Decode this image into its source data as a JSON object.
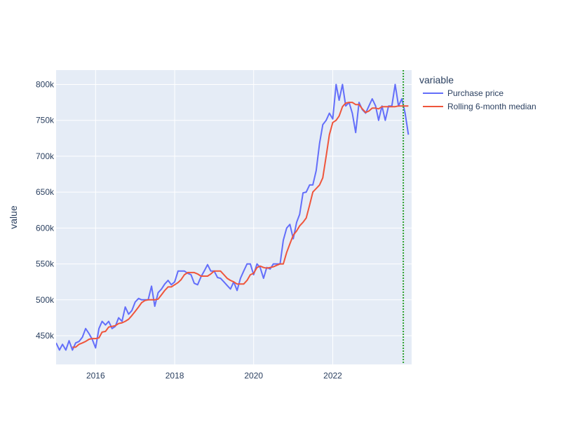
{
  "chart_data": {
    "type": "line",
    "title": "",
    "xlabel": "",
    "ylabel": "value",
    "xlim": [
      "2015-01-01",
      "2023-12-31"
    ],
    "ylim": [
      410000,
      820000
    ],
    "x_ticks": [
      {
        "value": "2016-01-01",
        "label": "2016"
      },
      {
        "value": "2018-01-01",
        "label": "2018"
      },
      {
        "value": "2020-01-01",
        "label": "2020"
      },
      {
        "value": "2022-01-01",
        "label": "2022"
      }
    ],
    "y_ticks": [
      {
        "value": 450000,
        "label": "450k"
      },
      {
        "value": 500000,
        "label": "500k"
      },
      {
        "value": 550000,
        "label": "550k"
      },
      {
        "value": 600000,
        "label": "600k"
      },
      {
        "value": 650000,
        "label": "650k"
      },
      {
        "value": 700000,
        "label": "700k"
      },
      {
        "value": 750000,
        "label": "750k"
      },
      {
        "value": 800000,
        "label": "800k"
      }
    ],
    "grid": true,
    "legend": {
      "title": "variable",
      "position": "top-right, outside plot"
    },
    "vertical_line": {
      "x": "2023-10-15",
      "color": "#2ca02c",
      "style": "dotted"
    },
    "series": [
      {
        "name": "Purchase price",
        "color": "#636efa",
        "points": [
          [
            "2015-01-01",
            440000
          ],
          [
            "2015-02-01",
            430000
          ],
          [
            "2015-03-01",
            438000
          ],
          [
            "2015-04-01",
            430000
          ],
          [
            "2015-05-01",
            443000
          ],
          [
            "2015-06-01",
            430000
          ],
          [
            "2015-07-01",
            440000
          ],
          [
            "2015-08-01",
            442000
          ],
          [
            "2015-09-01",
            448000
          ],
          [
            "2015-10-01",
            460000
          ],
          [
            "2015-11-01",
            453000
          ],
          [
            "2015-12-01",
            445000
          ],
          [
            "2016-01-01",
            433000
          ],
          [
            "2016-02-01",
            460000
          ],
          [
            "2016-03-01",
            470000
          ],
          [
            "2016-04-01",
            465000
          ],
          [
            "2016-05-01",
            470000
          ],
          [
            "2016-06-01",
            460000
          ],
          [
            "2016-07-01",
            463000
          ],
          [
            "2016-08-01",
            475000
          ],
          [
            "2016-09-01",
            470000
          ],
          [
            "2016-10-01",
            490000
          ],
          [
            "2016-11-01",
            480000
          ],
          [
            "2016-12-01",
            485000
          ],
          [
            "2017-01-01",
            497000
          ],
          [
            "2017-02-01",
            502000
          ],
          [
            "2017-03-01",
            500000
          ],
          [
            "2017-04-01",
            500000
          ],
          [
            "2017-05-01",
            500000
          ],
          [
            "2017-06-01",
            519000
          ],
          [
            "2017-07-01",
            491000
          ],
          [
            "2017-08-01",
            510000
          ],
          [
            "2017-09-01",
            515000
          ],
          [
            "2017-10-01",
            522000
          ],
          [
            "2017-11-01",
            527000
          ],
          [
            "2017-12-01",
            521000
          ],
          [
            "2018-01-01",
            525000
          ],
          [
            "2018-02-01",
            540000
          ],
          [
            "2018-03-01",
            540000
          ],
          [
            "2018-04-01",
            540000
          ],
          [
            "2018-05-01",
            537000
          ],
          [
            "2018-06-01",
            535000
          ],
          [
            "2018-07-01",
            523000
          ],
          [
            "2018-08-01",
            521000
          ],
          [
            "2018-09-01",
            532000
          ],
          [
            "2018-10-01",
            540000
          ],
          [
            "2018-11-01",
            549000
          ],
          [
            "2018-12-01",
            540000
          ],
          [
            "2019-01-01",
            540000
          ],
          [
            "2019-02-01",
            531000
          ],
          [
            "2019-03-01",
            530000
          ],
          [
            "2019-04-01",
            525000
          ],
          [
            "2019-05-01",
            520000
          ],
          [
            "2019-06-01",
            515000
          ],
          [
            "2019-07-01",
            525000
          ],
          [
            "2019-08-01",
            513000
          ],
          [
            "2019-09-01",
            530000
          ],
          [
            "2019-10-01",
            540000
          ],
          [
            "2019-11-01",
            550000
          ],
          [
            "2019-12-01",
            550000
          ],
          [
            "2020-01-01",
            535000
          ],
          [
            "2020-02-01",
            550000
          ],
          [
            "2020-03-01",
            545000
          ],
          [
            "2020-04-01",
            530000
          ],
          [
            "2020-05-01",
            545000
          ],
          [
            "2020-06-01",
            543000
          ],
          [
            "2020-07-01",
            550000
          ],
          [
            "2020-08-01",
            550000
          ],
          [
            "2020-09-01",
            550000
          ],
          [
            "2020-10-01",
            583000
          ],
          [
            "2020-11-01",
            600000
          ],
          [
            "2020-12-01",
            605000
          ],
          [
            "2021-01-01",
            585000
          ],
          [
            "2021-02-01",
            608000
          ],
          [
            "2021-03-01",
            619000
          ],
          [
            "2021-04-01",
            649000
          ],
          [
            "2021-05-01",
            650000
          ],
          [
            "2021-06-01",
            660000
          ],
          [
            "2021-07-01",
            660000
          ],
          [
            "2021-08-01",
            680000
          ],
          [
            "2021-09-01",
            718000
          ],
          [
            "2021-10-01",
            744000
          ],
          [
            "2021-11-01",
            750000
          ],
          [
            "2021-12-01",
            760000
          ],
          [
            "2022-01-01",
            752000
          ],
          [
            "2022-02-01",
            800000
          ],
          [
            "2022-03-01",
            778000
          ],
          [
            "2022-04-01",
            800000
          ],
          [
            "2022-05-01",
            770000
          ],
          [
            "2022-06-01",
            775000
          ],
          [
            "2022-07-01",
            760000
          ],
          [
            "2022-08-01",
            733000
          ],
          [
            "2022-09-01",
            775000
          ],
          [
            "2022-10-01",
            765000
          ],
          [
            "2022-11-01",
            760000
          ],
          [
            "2022-12-01",
            770000
          ],
          [
            "2023-01-01",
            780000
          ],
          [
            "2023-02-01",
            770000
          ],
          [
            "2023-03-01",
            750000
          ],
          [
            "2023-04-01",
            770000
          ],
          [
            "2023-05-01",
            750000
          ],
          [
            "2023-06-01",
            770000
          ],
          [
            "2023-07-01",
            770000
          ],
          [
            "2023-08-01",
            800000
          ],
          [
            "2023-09-01",
            770000
          ],
          [
            "2023-10-01",
            780000
          ],
          [
            "2023-11-01",
            760000
          ],
          [
            "2023-12-01",
            730000
          ]
        ]
      },
      {
        "name": "Rolling 6-month median",
        "color": "#ef553b",
        "points": [
          [
            "2015-06-01",
            434000
          ],
          [
            "2015-07-01",
            434000
          ],
          [
            "2015-08-01",
            438000
          ],
          [
            "2015-09-01",
            440000
          ],
          [
            "2015-10-01",
            442000
          ],
          [
            "2015-11-01",
            445000
          ],
          [
            "2015-12-01",
            446000
          ],
          [
            "2016-01-01",
            446000
          ],
          [
            "2016-02-01",
            447000
          ],
          [
            "2016-03-01",
            455000
          ],
          [
            "2016-04-01",
            456000
          ],
          [
            "2016-05-01",
            462000
          ],
          [
            "2016-06-01",
            463000
          ],
          [
            "2016-07-01",
            464000
          ],
          [
            "2016-08-01",
            467000
          ],
          [
            "2016-09-01",
            468000
          ],
          [
            "2016-10-01",
            470000
          ],
          [
            "2016-11-01",
            473000
          ],
          [
            "2016-12-01",
            478000
          ],
          [
            "2017-01-01",
            484000
          ],
          [
            "2017-02-01",
            490000
          ],
          [
            "2017-03-01",
            496000
          ],
          [
            "2017-04-01",
            499000
          ],
          [
            "2017-05-01",
            500000
          ],
          [
            "2017-06-01",
            500000
          ],
          [
            "2017-07-01",
            500000
          ],
          [
            "2017-08-01",
            501000
          ],
          [
            "2017-09-01",
            507000
          ],
          [
            "2017-10-01",
            513000
          ],
          [
            "2017-11-01",
            518000
          ],
          [
            "2017-12-01",
            518000
          ],
          [
            "2018-01-01",
            521000
          ],
          [
            "2018-02-01",
            524000
          ],
          [
            "2018-03-01",
            528000
          ],
          [
            "2018-04-01",
            535000
          ],
          [
            "2018-05-01",
            538000
          ],
          [
            "2018-06-01",
            538000
          ],
          [
            "2018-07-01",
            538000
          ],
          [
            "2018-08-01",
            536000
          ],
          [
            "2018-09-01",
            533000
          ],
          [
            "2018-10-01",
            533000
          ],
          [
            "2018-11-01",
            533000
          ],
          [
            "2018-12-01",
            536000
          ],
          [
            "2019-01-01",
            540000
          ],
          [
            "2019-02-01",
            540000
          ],
          [
            "2019-03-01",
            540000
          ],
          [
            "2019-04-01",
            535000
          ],
          [
            "2019-05-01",
            530000
          ],
          [
            "2019-06-01",
            527000
          ],
          [
            "2019-07-01",
            525000
          ],
          [
            "2019-08-01",
            522000
          ],
          [
            "2019-09-01",
            522000
          ],
          [
            "2019-10-01",
            522000
          ],
          [
            "2019-11-01",
            527000
          ],
          [
            "2019-12-01",
            535000
          ],
          [
            "2020-01-01",
            537000
          ],
          [
            "2020-02-01",
            545000
          ],
          [
            "2020-03-01",
            547000
          ],
          [
            "2020-04-01",
            545000
          ],
          [
            "2020-05-01",
            544000
          ],
          [
            "2020-06-01",
            545000
          ],
          [
            "2020-07-01",
            546000
          ],
          [
            "2020-08-01",
            548000
          ],
          [
            "2020-09-01",
            550000
          ],
          [
            "2020-10-01",
            550000
          ],
          [
            "2020-11-01",
            566000
          ],
          [
            "2020-12-01",
            578000
          ],
          [
            "2021-01-01",
            590000
          ],
          [
            "2021-02-01",
            596000
          ],
          [
            "2021-03-01",
            603000
          ],
          [
            "2021-04-01",
            608000
          ],
          [
            "2021-05-01",
            614000
          ],
          [
            "2021-06-01",
            632000
          ],
          [
            "2021-07-01",
            650000
          ],
          [
            "2021-08-01",
            655000
          ],
          [
            "2021-09-01",
            660000
          ],
          [
            "2021-10-01",
            670000
          ],
          [
            "2021-11-01",
            700000
          ],
          [
            "2021-12-01",
            730000
          ],
          [
            "2022-01-01",
            747000
          ],
          [
            "2022-02-01",
            750000
          ],
          [
            "2022-03-01",
            756000
          ],
          [
            "2022-04-01",
            769000
          ],
          [
            "2022-05-01",
            774000
          ],
          [
            "2022-06-01",
            775000
          ],
          [
            "2022-07-01",
            775000
          ],
          [
            "2022-08-01",
            772000
          ],
          [
            "2022-09-01",
            772000
          ],
          [
            "2022-10-01",
            766000
          ],
          [
            "2022-11-01",
            761000
          ],
          [
            "2022-12-01",
            763000
          ],
          [
            "2023-01-01",
            767000
          ],
          [
            "2023-02-01",
            767000
          ],
          [
            "2023-03-01",
            766000
          ],
          [
            "2023-04-01",
            769000
          ],
          [
            "2023-05-01",
            769000
          ],
          [
            "2023-06-01",
            769000
          ],
          [
            "2023-07-01",
            769000
          ],
          [
            "2023-08-01",
            769000
          ],
          [
            "2023-09-01",
            770000
          ],
          [
            "2023-10-01",
            770000
          ],
          [
            "2023-11-01",
            770000
          ],
          [
            "2023-12-01",
            770000
          ]
        ]
      }
    ]
  },
  "colors": {
    "plot_background": "#e5ecf6",
    "grid": "#ffffff",
    "text": "#2a3f5f"
  }
}
